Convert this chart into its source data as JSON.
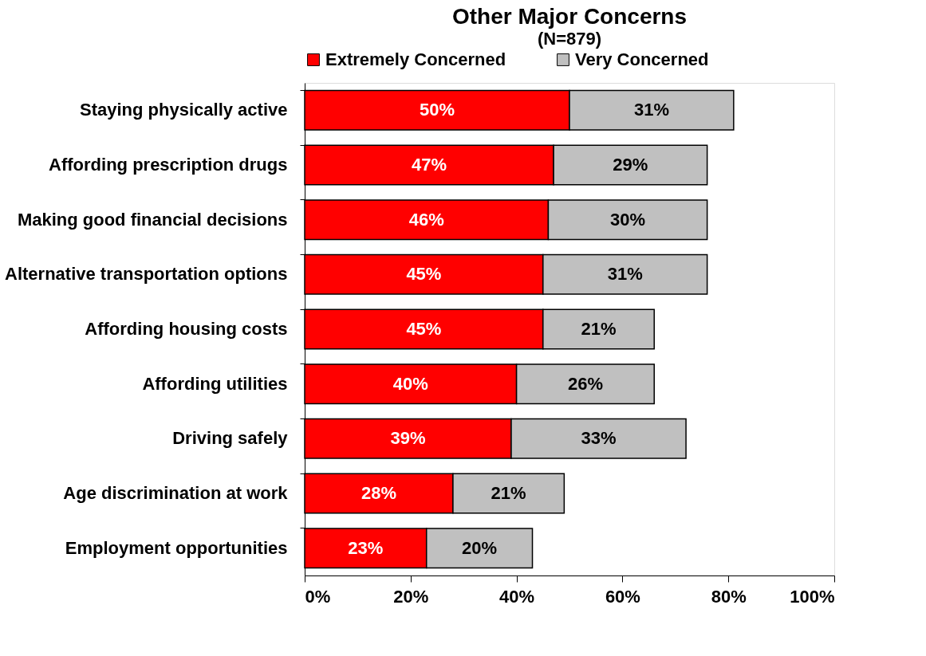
{
  "chart_data": {
    "type": "bar",
    "orientation": "horizontal",
    "stacked": true,
    "title": "Other Major Concerns",
    "subtitle": "(N=879)",
    "categories": [
      "Staying physically active",
      "Affording prescription drugs",
      "Making good financial decisions",
      "Alternative transportation options",
      "Affording housing costs",
      "Affording utilities",
      "Driving safely",
      "Age discrimination at work",
      "Employment opportunities"
    ],
    "series": [
      {
        "name": "Extremely Concerned",
        "color": "#ff0000",
        "values": [
          50,
          47,
          46,
          45,
          45,
          40,
          39,
          28,
          23
        ],
        "value_labels": [
          "50%",
          "47%",
          "46%",
          "45%",
          "45%",
          "40%",
          "39%",
          "28%",
          "23%"
        ]
      },
      {
        "name": "Very Concerned",
        "color": "#c0c0c0",
        "values": [
          31,
          29,
          30,
          31,
          21,
          26,
          33,
          21,
          20
        ],
        "value_labels": [
          "31%",
          "29%",
          "30%",
          "31%",
          "21%",
          "26%",
          "33%",
          "21%",
          "20%"
        ]
      }
    ],
    "xlim": [
      0,
      100
    ],
    "xticks": [
      {
        "value": 0,
        "label": "0%"
      },
      {
        "value": 20,
        "label": "20%"
      },
      {
        "value": 40,
        "label": "40%"
      },
      {
        "value": 60,
        "label": "60%"
      },
      {
        "value": 80,
        "label": "80%"
      },
      {
        "value": 100,
        "label": "100%"
      }
    ],
    "legend": "top",
    "grid": false
  }
}
